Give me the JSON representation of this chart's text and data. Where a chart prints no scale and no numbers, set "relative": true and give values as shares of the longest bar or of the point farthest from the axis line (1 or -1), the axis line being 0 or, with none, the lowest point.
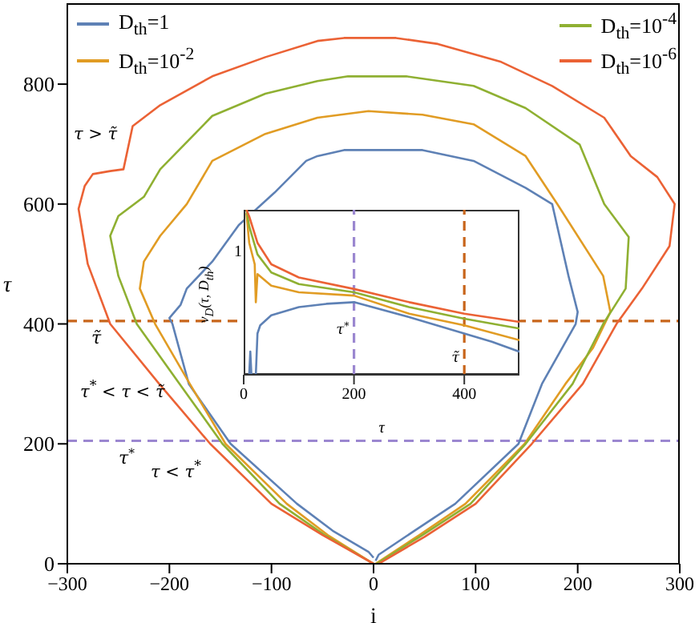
{
  "chart_data": [
    {
      "type": "line",
      "xlabel": "i",
      "ylabel": "τ",
      "xlim": [
        -300,
        300
      ],
      "ylim": [
        0,
        935
      ],
      "xticks": [
        -300,
        -200,
        -100,
        0,
        100,
        200,
        300
      ],
      "yticks": [
        0,
        200,
        400,
        600,
        800
      ],
      "legend": "top",
      "series": [
        {
          "name": "D$_{th}$=1",
          "color": "#5e81b5",
          "x": [
            0,
            -5,
            -40,
            -75,
            -140,
            -181,
            -197,
            -200,
            -189,
            -183,
            -158,
            -132,
            -97,
            -66,
            -55,
            -29,
            48,
            98,
            149,
            175,
            191,
            200,
            198,
            165,
            142,
            80,
            40,
            5,
            2
          ],
          "values": [
            10,
            20,
            55,
            100,
            200,
            300,
            400,
            410,
            432,
            459,
            504,
            565,
            619,
            672,
            680,
            690,
            690,
            672,
            627,
            600,
            480,
            420,
            400,
            300,
            200,
            100,
            55,
            15,
            5
          ]
        },
        {
          "name": "D$_{th}$=10$^{-2}$",
          "color": "#e19c24",
          "x": [
            0,
            -45,
            -85,
            -145,
            -180,
            -214,
            -229,
            -225,
            -209,
            -183,
            -158,
            -106,
            -55,
            -5,
            48,
            98,
            149,
            180,
            225,
            232,
            215,
            188,
            148,
            90,
            45,
            2
          ],
          "values": [
            0,
            48,
            100,
            200,
            300,
            400,
            459,
            504,
            547,
            600,
            672,
            717,
            744,
            755,
            749,
            733,
            680,
            600,
            480,
            420,
            360,
            300,
            200,
            100,
            48,
            0
          ]
        },
        {
          "name": "D$_{th}$=10$^{-4}$",
          "color": "#8fb032",
          "x": [
            0,
            -48,
            -92,
            -148,
            -190,
            -232,
            -250,
            -258,
            -250,
            -225,
            -209,
            -158,
            -106,
            -55,
            -25,
            32,
            98,
            149,
            202,
            226,
            250,
            247,
            225,
            195,
            149,
            95,
            48,
            3
          ],
          "values": [
            0,
            48,
            100,
            200,
            300,
            400,
            480,
            547,
            580,
            612,
            658,
            747,
            784,
            805,
            813,
            813,
            797,
            760,
            699,
            600,
            545,
            459,
            400,
            300,
            200,
            100,
            48,
            0
          ]
        },
        {
          "name": "D$_{th}$=10$^{-6}$",
          "color": "#eb6235",
          "x": [
            0,
            -50,
            -100,
            -160,
            -210,
            -258,
            -280,
            -289,
            -283,
            -275,
            -258,
            -245,
            -236,
            -209,
            -158,
            -106,
            -55,
            -29,
            22,
            63,
            125,
            175,
            226,
            252,
            278,
            295,
            290,
            263,
            238,
            205,
            155,
            100,
            50,
            5
          ],
          "values": [
            0,
            48,
            100,
            200,
            300,
            400,
            500,
            592,
            630,
            650,
            655,
            658,
            730,
            765,
            813,
            845,
            872,
            877,
            877,
            867,
            837,
            797,
            744,
            680,
            645,
            600,
            530,
            459,
            400,
            300,
            200,
            100,
            45,
            0
          ]
        }
      ],
      "ref_lines": [
        {
          "axis": "y",
          "value": 205,
          "label": "τ$^{*}$",
          "color": "#9b87d0",
          "line_style": "dashed"
        },
        {
          "axis": "y",
          "value": 405,
          "label": "τ̃",
          "color": "#c8651b",
          "line_style": "dashed"
        }
      ],
      "annotations": [
        "τ > τ̃",
        "τ$^{*}$ < τ < τ̃",
        "τ < τ$^{*}$"
      ]
    },
    {
      "type": "line",
      "relative": true,
      "xlabel": "τ",
      "ylabel": "ν$_{D}$(τ, D$_{th}$)",
      "xlim": [
        0,
        500
      ],
      "xticks": [
        0,
        200,
        400
      ],
      "series": [
        {
          "color": "#5e81b5",
          "x": [
            10,
            12,
            14,
            22,
            25,
            30,
            40,
            50,
            100,
            150,
            200,
            300,
            400,
            450,
            500
          ],
          "values": [
            0,
            0.14,
            0,
            0,
            0.25,
            0.3,
            0.33,
            0.36,
            0.41,
            0.43,
            0.44,
            0.35,
            0.25,
            0.2,
            0.14
          ]
        },
        {
          "color": "#e19c24",
          "x": [
            5,
            10,
            20,
            22,
            25,
            50,
            100,
            200,
            300,
            400,
            500
          ],
          "values": [
            0.98,
            0.8,
            0.67,
            0.44,
            0.61,
            0.54,
            0.5,
            0.48,
            0.37,
            0.3,
            0.21
          ]
        },
        {
          "color": "#8fb032",
          "x": [
            5,
            10,
            25,
            50,
            100,
            200,
            300,
            400,
            500
          ],
          "values": [
            1,
            0.9,
            0.73,
            0.62,
            0.55,
            0.5,
            0.41,
            0.34,
            0.28
          ]
        },
        {
          "color": "#eb6235",
          "x": [
            5,
            10,
            25,
            50,
            100,
            200,
            300,
            400,
            500
          ],
          "values": [
            1,
            0.96,
            0.8,
            0.67,
            0.59,
            0.52,
            0.44,
            0.37,
            0.32
          ]
        }
      ],
      "ref_lines": [
        {
          "axis": "x",
          "value": 200,
          "label": "τ$^{*}$",
          "color": "#9b87d0",
          "line_style": "dashed"
        },
        {
          "axis": "x",
          "value": 400,
          "label": "τ̃",
          "color": "#c8651b",
          "line_style": "dashed"
        }
      ],
      "annotations": [
        "1"
      ]
    }
  ]
}
